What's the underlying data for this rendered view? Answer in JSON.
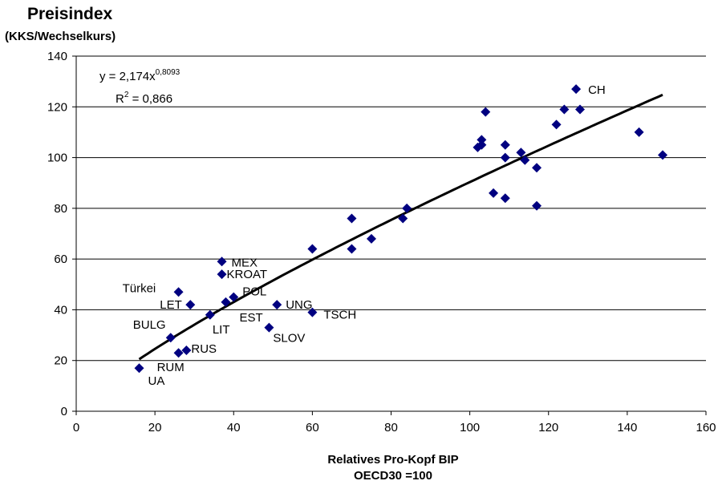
{
  "chart_data": {
    "type": "scatter",
    "ylabel": "Preisindex",
    "ylabel_sub": "(KKS/Wechselkurs)",
    "xlabel": "Relatives Pro-Kopf BIP",
    "xlabel_sub": "OECD30 =100",
    "xlim": [
      0,
      160
    ],
    "ylim": [
      0,
      140
    ],
    "xticks": [
      "0",
      "20",
      "40",
      "60",
      "80",
      "100",
      "120",
      "140",
      "160"
    ],
    "yticks": [
      "0",
      "20",
      "40",
      "60",
      "80",
      "100",
      "120",
      "140"
    ],
    "grid": "horizontal",
    "marker_color": "#000080",
    "trendline_color": "#000000",
    "equation": {
      "text": "y = 2,174x",
      "exponent": "0,8093"
    },
    "r_squared": {
      "text": "R",
      "sup": "2",
      "value": " = 0,866"
    },
    "trendline": {
      "type": "power",
      "a": 2.174,
      "b": 0.8093,
      "x_range": [
        16,
        149
      ]
    },
    "points": [
      {
        "x": 16,
        "y": 17,
        "label": "UA"
      },
      {
        "x": 24,
        "y": 29,
        "label": "BULG"
      },
      {
        "x": 26,
        "y": 23,
        "label": "RUM"
      },
      {
        "x": 28,
        "y": 24,
        "label": "RUS"
      },
      {
        "x": 26,
        "y": 47,
        "label": "Türkei"
      },
      {
        "x": 29,
        "y": 42,
        "label": "LET"
      },
      {
        "x": 34,
        "y": 38,
        "label": "LIT"
      },
      {
        "x": 37,
        "y": 59,
        "label": "MEX"
      },
      {
        "x": 37,
        "y": 54,
        "label": "KROAT"
      },
      {
        "x": 38,
        "y": 43,
        "label": "EST"
      },
      {
        "x": 40,
        "y": 45,
        "label": "POL"
      },
      {
        "x": 49,
        "y": 33,
        "label": "SLOV"
      },
      {
        "x": 51,
        "y": 42,
        "label": "UNG"
      },
      {
        "x": 60,
        "y": 39,
        "label": "TSCH"
      },
      {
        "x": 60,
        "y": 64,
        "label": ""
      },
      {
        "x": 70,
        "y": 64,
        "label": ""
      },
      {
        "x": 70,
        "y": 76,
        "label": ""
      },
      {
        "x": 75,
        "y": 68,
        "label": ""
      },
      {
        "x": 83,
        "y": 76,
        "label": ""
      },
      {
        "x": 84,
        "y": 80,
        "label": ""
      },
      {
        "x": 102,
        "y": 104,
        "label": ""
      },
      {
        "x": 103,
        "y": 107,
        "label": ""
      },
      {
        "x": 103,
        "y": 105,
        "label": ""
      },
      {
        "x": 104,
        "y": 118,
        "label": ""
      },
      {
        "x": 106,
        "y": 86,
        "label": ""
      },
      {
        "x": 109,
        "y": 105,
        "label": ""
      },
      {
        "x": 109,
        "y": 100,
        "label": ""
      },
      {
        "x": 109,
        "y": 84,
        "label": ""
      },
      {
        "x": 113,
        "y": 102,
        "label": ""
      },
      {
        "x": 114,
        "y": 99,
        "label": ""
      },
      {
        "x": 117,
        "y": 96,
        "label": ""
      },
      {
        "x": 117,
        "y": 81,
        "label": ""
      },
      {
        "x": 122,
        "y": 113,
        "label": ""
      },
      {
        "x": 124,
        "y": 119,
        "label": ""
      },
      {
        "x": 127,
        "y": 127,
        "label": "CH"
      },
      {
        "x": 128,
        "y": 119,
        "label": ""
      },
      {
        "x": 143,
        "y": 110,
        "label": ""
      },
      {
        "x": 149,
        "y": 101,
        "label": ""
      }
    ]
  }
}
